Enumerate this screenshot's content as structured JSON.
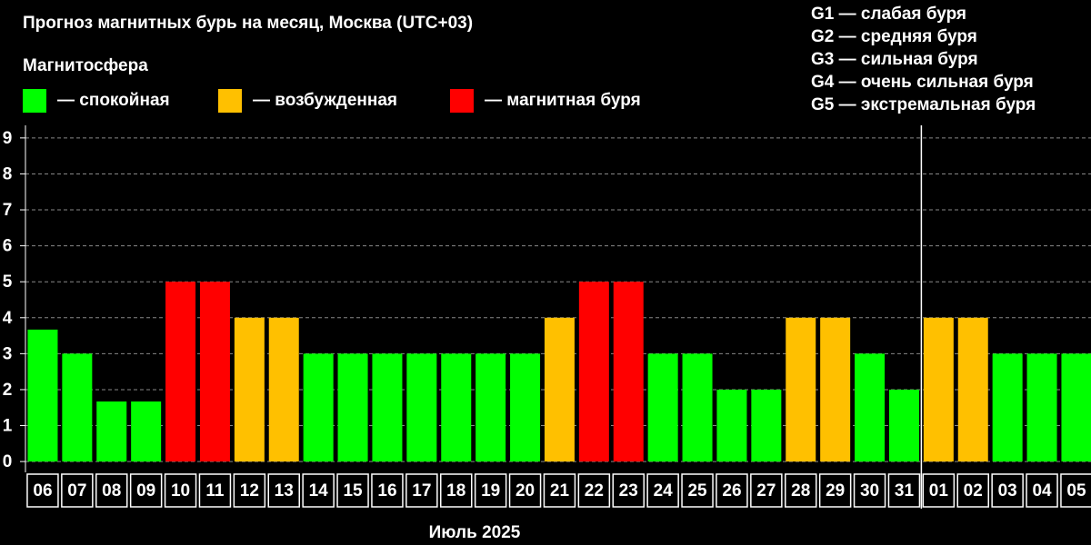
{
  "chart_data": {
    "type": "bar",
    "title": "Прогноз магнитных бурь на месяц, Москва (UTC+03)",
    "legend_title": "Магнитосфера",
    "legend": [
      {
        "label": "— спокойная",
        "color": "#00ff00"
      },
      {
        "label": "— возбужденная",
        "color": "#ffc000"
      },
      {
        "label": "— магнитная буря",
        "color": "#ff0000"
      }
    ],
    "g_scale": [
      "G1 — слабая буря",
      "G2 — средняя буря",
      "G3 — сильная буря",
      "G4 — очень сильная буря",
      "G5 — экстремальная буря"
    ],
    "x_label": "Июль 2025",
    "categories": [
      "06",
      "07",
      "08",
      "09",
      "10",
      "11",
      "12",
      "13",
      "14",
      "15",
      "16",
      "17",
      "18",
      "19",
      "20",
      "21",
      "22",
      "23",
      "24",
      "25",
      "26",
      "27",
      "28",
      "29",
      "30",
      "31",
      "01",
      "02",
      "03",
      "04",
      "05"
    ],
    "values": [
      3.67,
      3,
      1.67,
      1.67,
      5,
      5,
      4,
      4,
      3,
      3,
      3,
      3,
      3,
      3,
      3,
      4,
      5,
      5,
      3,
      3,
      2,
      2,
      4,
      4,
      3,
      2,
      4,
      4,
      3,
      3,
      3
    ],
    "colors": [
      "#00ff00",
      "#00ff00",
      "#00ff00",
      "#00ff00",
      "#ff0000",
      "#ff0000",
      "#ffc000",
      "#ffc000",
      "#00ff00",
      "#00ff00",
      "#00ff00",
      "#00ff00",
      "#00ff00",
      "#00ff00",
      "#00ff00",
      "#ffc000",
      "#ff0000",
      "#ff0000",
      "#00ff00",
      "#00ff00",
      "#00ff00",
      "#00ff00",
      "#ffc000",
      "#ffc000",
      "#00ff00",
      "#00ff00",
      "#ffc000",
      "#ffc000",
      "#00ff00",
      "#00ff00",
      "#00ff00"
    ],
    "ylim": [
      -0.3,
      9.35
    ],
    "yticks": [
      0,
      1,
      2,
      3,
      4,
      5,
      6,
      7,
      8,
      9
    ],
    "grid": true
  }
}
